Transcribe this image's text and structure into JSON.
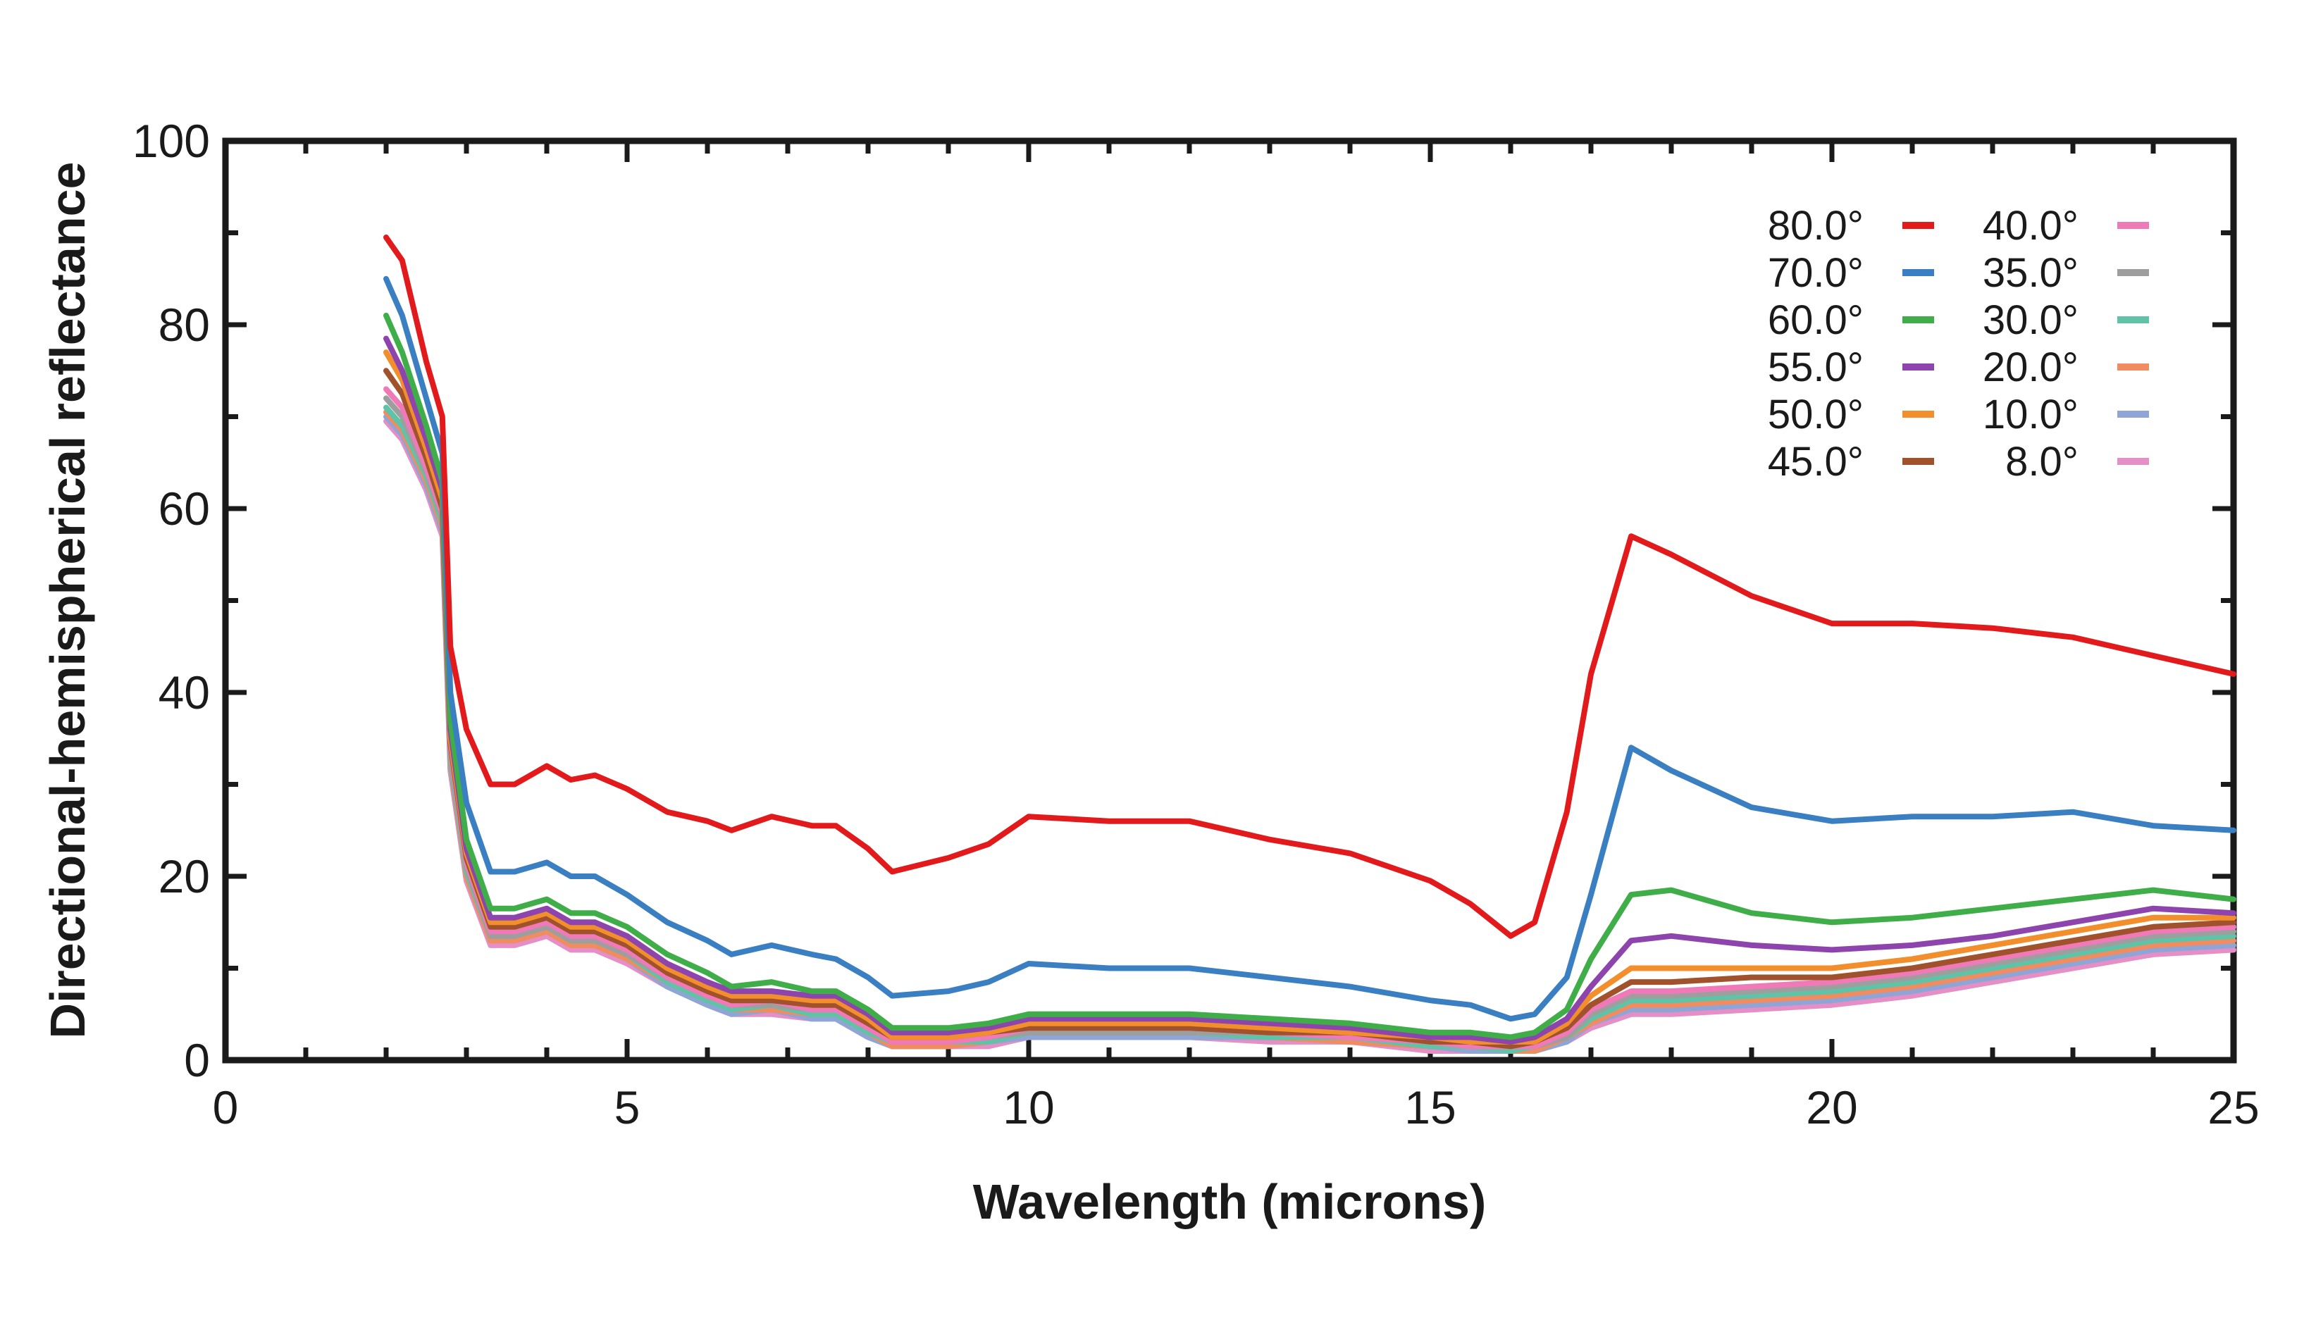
{
  "chart_data": {
    "type": "line",
    "title": "",
    "xlabel": "Wavelength (microns)",
    "ylabel": "Directional-hemispherical reflectance",
    "xlim": [
      0,
      25
    ],
    "ylim": [
      0,
      100
    ],
    "xticks": [
      0,
      5,
      10,
      15,
      20,
      25
    ],
    "yticks": [
      0,
      20,
      40,
      60,
      80,
      100
    ],
    "xtick_labels": [
      "0",
      "5",
      "10",
      "15",
      "20",
      "25"
    ],
    "ytick_labels": [
      "0",
      "20",
      "40",
      "60",
      "80",
      "100"
    ],
    "legend_position": "top-right",
    "x": [
      2.0,
      2.2,
      2.5,
      2.7,
      2.8,
      3.0,
      3.3,
      3.6,
      4.0,
      4.3,
      4.6,
      5.0,
      5.5,
      6.0,
      6.3,
      6.8,
      7.3,
      7.6,
      8.0,
      8.3,
      9.0,
      9.5,
      10.0,
      11.0,
      12.0,
      13.0,
      14.0,
      15.0,
      15.5,
      16.0,
      16.3,
      16.7,
      17.0,
      17.5,
      18.0,
      19.0,
      20.0,
      21.0,
      22.0,
      23.0,
      24.0,
      25.0
    ],
    "series": [
      {
        "name": "80.0°",
        "color": "#e31a1c",
        "dashed": false,
        "values": [
          89.5,
          87,
          76,
          70,
          45,
          36,
          30,
          30,
          32,
          30.5,
          31,
          29.5,
          27,
          26,
          25,
          26.5,
          25.5,
          25.5,
          23,
          20.5,
          22,
          23.5,
          26.5,
          26,
          26,
          24,
          22.5,
          19.5,
          17,
          13.5,
          15,
          27,
          42,
          57,
          55,
          50.5,
          47.5,
          47.5,
          47,
          46,
          44,
          42
        ]
      },
      {
        "name": "70.0°",
        "color": "#3a7fc1",
        "dashed": false,
        "values": [
          85,
          81,
          72,
          66,
          40,
          28,
          20.5,
          20.5,
          21.5,
          20,
          20,
          18,
          15,
          13,
          11.5,
          12.5,
          11.5,
          11,
          9,
          7,
          7.5,
          8.5,
          10.5,
          10,
          10,
          9,
          8,
          6.5,
          6,
          4.5,
          5,
          9,
          18,
          34,
          31.5,
          27.5,
          26,
          26.5,
          26.5,
          27,
          25.5,
          25
        ]
      },
      {
        "name": "60.0°",
        "color": "#3fae49",
        "dashed": false,
        "values": [
          81,
          77,
          69,
          63,
          37,
          24,
          16.5,
          16.5,
          17.5,
          16,
          16,
          14.5,
          11.5,
          9.5,
          8,
          8.5,
          7.5,
          7.5,
          5.5,
          3.5,
          3.5,
          4,
          5,
          5,
          5,
          4.5,
          4,
          3,
          3,
          2.5,
          3,
          5.5,
          11,
          18,
          18.5,
          16,
          15,
          15.5,
          16.5,
          17.5,
          18.5,
          17.5
        ]
      },
      {
        "name": "55.0°",
        "color": "#8e44ad",
        "dashed": false,
        "values": [
          78.5,
          75,
          67.5,
          62,
          36,
          23,
          15.5,
          15.5,
          16.5,
          15,
          15,
          13.5,
          10.5,
          8.5,
          7.5,
          7.5,
          7,
          7,
          5,
          3,
          3,
          3.5,
          4.5,
          4.5,
          4.5,
          4,
          3.5,
          2.5,
          2.5,
          2,
          2.5,
          4.5,
          8,
          13,
          13.5,
          12.5,
          12,
          12.5,
          13.5,
          15,
          16.5,
          16
        ]
      },
      {
        "name": "50.0°",
        "color": "#f28e2b",
        "dashed": false,
        "values": [
          77,
          74,
          66.5,
          61,
          35,
          22.5,
          15,
          15,
          16,
          14.5,
          14.5,
          13,
          10,
          8,
          7,
          7,
          6.5,
          6.5,
          4.5,
          2.5,
          2.5,
          3,
          4,
          4,
          4,
          3.5,
          3,
          2.5,
          2,
          2,
          2,
          4,
          7,
          10,
          10,
          10,
          10,
          11,
          12.5,
          14,
          15.5,
          15.5
        ]
      },
      {
        "name": "45.0°",
        "color": "#a0522d",
        "dashed": false,
        "values": [
          75,
          72.5,
          65.5,
          60,
          34.5,
          22,
          14.5,
          14.5,
          15.5,
          14,
          14,
          12.5,
          9.5,
          7.5,
          6.5,
          6.5,
          6,
          6,
          4,
          2.5,
          2.5,
          3,
          3.5,
          3.5,
          3.5,
          3,
          3,
          2,
          2,
          1.5,
          2,
          3.5,
          6,
          8.5,
          8.5,
          9,
          9,
          10,
          11.5,
          13,
          14.5,
          15
        ]
      },
      {
        "name": "40.0°",
        "color": "#f07ab8",
        "dashed": true,
        "values": [
          73,
          71,
          64.5,
          59.5,
          34,
          21.5,
          14,
          14,
          15,
          13.5,
          13.5,
          12,
          9,
          7,
          6,
          6.5,
          5.5,
          5.5,
          3.5,
          2,
          2,
          2.5,
          3.5,
          3.5,
          3.5,
          3,
          2.5,
          2,
          1.5,
          1.5,
          1.5,
          3,
          5.5,
          7.5,
          7.5,
          8,
          8.5,
          9.5,
          11,
          12.5,
          14,
          14.5
        ]
      },
      {
        "name": "35.0°",
        "color": "#9e9e9e",
        "dashed": true,
        "values": [
          72,
          70,
          64,
          59,
          33.5,
          21,
          13.5,
          13.5,
          14.5,
          13,
          13,
          11.5,
          9,
          7,
          6,
          6,
          5.5,
          5.5,
          3.5,
          2,
          2,
          2.5,
          3,
          3,
          3,
          3,
          2.5,
          2,
          1.5,
          1.5,
          1.5,
          2.5,
          5,
          7,
          7,
          7.5,
          8,
          9,
          10.5,
          12,
          13.5,
          14
        ]
      },
      {
        "name": "30.0°",
        "color": "#5fc3a7",
        "dashed": true,
        "values": [
          71,
          69,
          63.5,
          58.5,
          33,
          20.5,
          13.5,
          13.5,
          14.5,
          13,
          13,
          11.5,
          8.5,
          6.5,
          5.5,
          6,
          5,
          5,
          3,
          2,
          2,
          2,
          3,
          3,
          3,
          2.5,
          2.5,
          1.5,
          1.5,
          1,
          1.5,
          2.5,
          4.5,
          6.5,
          6.5,
          7,
          7.5,
          8.5,
          10,
          11.5,
          13,
          13.5
        ]
      },
      {
        "name": "20.0°",
        "color": "#f08c60",
        "dashed": true,
        "values": [
          70.5,
          68.5,
          63,
          58,
          32.5,
          20,
          13,
          13,
          14,
          12.5,
          12.5,
          11,
          8.5,
          6.5,
          5.5,
          5.5,
          5,
          5,
          3,
          1.5,
          1.5,
          2,
          3,
          3,
          3,
          2.5,
          2,
          1.5,
          1.5,
          1,
          1,
          2.5,
          4,
          6,
          6,
          6.5,
          7,
          8,
          9.5,
          11,
          12.5,
          13
        ]
      },
      {
        "name": "10.0°",
        "color": "#8ea5d6",
        "dashed": true,
        "values": [
          70,
          68,
          62.5,
          57.5,
          32,
          20,
          13,
          13,
          14,
          12.5,
          12.5,
          11,
          8,
          6,
          5,
          5.5,
          4.5,
          4.5,
          2.5,
          1.5,
          1.5,
          2,
          2.5,
          2.5,
          2.5,
          2.5,
          2,
          1.5,
          1,
          1,
          1,
          2,
          4,
          5.5,
          5.5,
          6,
          6.5,
          7.5,
          9,
          10.5,
          12,
          12.5
        ]
      },
      {
        "name": "8.0°",
        "color": "#e58fc6",
        "dashed": true,
        "values": [
          69.5,
          67.5,
          62,
          57,
          31.5,
          19.5,
          12.5,
          12.5,
          13.5,
          12,
          12,
          10.5,
          8,
          6,
          5,
          5,
          4.5,
          4.5,
          2.5,
          1.5,
          1.5,
          1.5,
          2.5,
          2.5,
          2.5,
          2,
          2,
          1,
          1,
          1,
          1,
          2,
          3.5,
          5,
          5,
          5.5,
          6,
          7,
          8.5,
          10,
          11.5,
          12
        ]
      }
    ]
  }
}
